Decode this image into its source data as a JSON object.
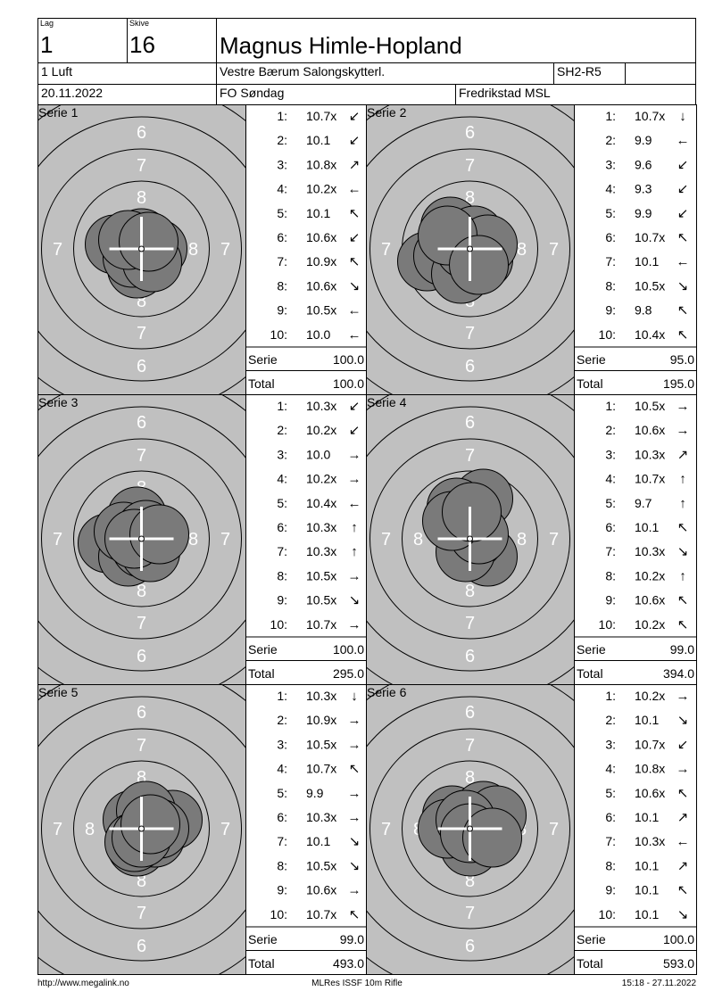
{
  "header": {
    "lag_label": "Lag",
    "lag": "1",
    "skive_label": "Skive",
    "skive": "16",
    "name": "Magnus Himle-Hopland",
    "class": "1 Luft",
    "club": "Vestre Bærum Salongskytterl.",
    "code": "SH2-R5",
    "date": "20.11.2022",
    "event": "FO Søndag",
    "venue": "Fredrikstad MSL"
  },
  "target": {
    "ring_outer": "6",
    "ring_middle": "7",
    "ring_inner": "8"
  },
  "labels": {
    "serie": "Serie",
    "total": "Total"
  },
  "series": [
    {
      "title": "Serie 1",
      "shots": [
        {
          "n": "1:",
          "score": "10.7x",
          "dir": "↙"
        },
        {
          "n": "2:",
          "score": "10.1",
          "dir": "↙"
        },
        {
          "n": "3:",
          "score": "10.8x",
          "dir": "↗"
        },
        {
          "n": "4:",
          "score": "10.2x",
          "dir": "←"
        },
        {
          "n": "5:",
          "score": "10.1",
          "dir": "↖"
        },
        {
          "n": "6:",
          "score": "10.6x",
          "dir": "↙"
        },
        {
          "n": "7:",
          "score": "10.9x",
          "dir": "↖"
        },
        {
          "n": "8:",
          "score": "10.6x",
          "dir": "↘"
        },
        {
          "n": "9:",
          "score": "10.5x",
          "dir": "←"
        },
        {
          "n": "10:",
          "score": "10.0",
          "dir": "←"
        }
      ],
      "serie": "100.0",
      "total": "100.0"
    },
    {
      "title": "Serie 2",
      "shots": [
        {
          "n": "1:",
          "score": "10.7x",
          "dir": "↓"
        },
        {
          "n": "2:",
          "score": "9.9",
          "dir": "←"
        },
        {
          "n": "3:",
          "score": "9.6",
          "dir": "↙"
        },
        {
          "n": "4:",
          "score": "9.3",
          "dir": "↙"
        },
        {
          "n": "5:",
          "score": "9.9",
          "dir": "↙"
        },
        {
          "n": "6:",
          "score": "10.7x",
          "dir": "↖"
        },
        {
          "n": "7:",
          "score": "10.1",
          "dir": "←"
        },
        {
          "n": "8:",
          "score": "10.5x",
          "dir": "↘"
        },
        {
          "n": "9:",
          "score": "9.8",
          "dir": "↖"
        },
        {
          "n": "10:",
          "score": "10.4x",
          "dir": "↖"
        }
      ],
      "serie": "95.0",
      "total": "195.0"
    },
    {
      "title": "Serie 3",
      "shots": [
        {
          "n": "1:",
          "score": "10.3x",
          "dir": "↙"
        },
        {
          "n": "2:",
          "score": "10.2x",
          "dir": "↙"
        },
        {
          "n": "3:",
          "score": "10.0",
          "dir": "→"
        },
        {
          "n": "4:",
          "score": "10.2x",
          "dir": "→"
        },
        {
          "n": "5:",
          "score": "10.4x",
          "dir": "←"
        },
        {
          "n": "6:",
          "score": "10.3x",
          "dir": "↑"
        },
        {
          "n": "7:",
          "score": "10.3x",
          "dir": "↑"
        },
        {
          "n": "8:",
          "score": "10.5x",
          "dir": "→"
        },
        {
          "n": "9:",
          "score": "10.5x",
          "dir": "↘"
        },
        {
          "n": "10:",
          "score": "10.7x",
          "dir": "→"
        }
      ],
      "serie": "100.0",
      "total": "295.0"
    },
    {
      "title": "Serie 4",
      "shots": [
        {
          "n": "1:",
          "score": "10.5x",
          "dir": "→"
        },
        {
          "n": "2:",
          "score": "10.6x",
          "dir": "→"
        },
        {
          "n": "3:",
          "score": "10.3x",
          "dir": "↗"
        },
        {
          "n": "4:",
          "score": "10.7x",
          "dir": "↑"
        },
        {
          "n": "5:",
          "score": "9.7",
          "dir": "↑"
        },
        {
          "n": "6:",
          "score": "10.1",
          "dir": "↖"
        },
        {
          "n": "7:",
          "score": "10.3x",
          "dir": "↘"
        },
        {
          "n": "8:",
          "score": "10.2x",
          "dir": "↑"
        },
        {
          "n": "9:",
          "score": "10.6x",
          "dir": "↖"
        },
        {
          "n": "10:",
          "score": "10.2x",
          "dir": "↖"
        }
      ],
      "serie": "99.0",
      "total": "394.0"
    },
    {
      "title": "Serie 5",
      "shots": [
        {
          "n": "1:",
          "score": "10.3x",
          "dir": "↓"
        },
        {
          "n": "2:",
          "score": "10.9x",
          "dir": "→"
        },
        {
          "n": "3:",
          "score": "10.5x",
          "dir": "→"
        },
        {
          "n": "4:",
          "score": "10.7x",
          "dir": "↖"
        },
        {
          "n": "5:",
          "score": "9.9",
          "dir": "→"
        },
        {
          "n": "6:",
          "score": "10.3x",
          "dir": "→"
        },
        {
          "n": "7:",
          "score": "10.1",
          "dir": "↘"
        },
        {
          "n": "8:",
          "score": "10.5x",
          "dir": "↘"
        },
        {
          "n": "9:",
          "score": "10.6x",
          "dir": "→"
        },
        {
          "n": "10:",
          "score": "10.7x",
          "dir": "↖"
        }
      ],
      "serie": "99.0",
      "total": "493.0"
    },
    {
      "title": "Serie 6",
      "shots": [
        {
          "n": "1:",
          "score": "10.2x",
          "dir": "→"
        },
        {
          "n": "2:",
          "score": "10.1",
          "dir": "↘"
        },
        {
          "n": "3:",
          "score": "10.7x",
          "dir": "↙"
        },
        {
          "n": "4:",
          "score": "10.8x",
          "dir": "→"
        },
        {
          "n": "5:",
          "score": "10.6x",
          "dir": "↖"
        },
        {
          "n": "6:",
          "score": "10.1",
          "dir": "↗"
        },
        {
          "n": "7:",
          "score": "10.3x",
          "dir": "←"
        },
        {
          "n": "8:",
          "score": "10.1",
          "dir": "↗"
        },
        {
          "n": "9:",
          "score": "10.1",
          "dir": "↖"
        },
        {
          "n": "10:",
          "score": "10.1",
          "dir": "↘"
        }
      ],
      "serie": "100.0",
      "total": "593.0"
    }
  ],
  "footer": {
    "left": "http://www.megalink.no",
    "center": "MLRes ISSF 10m Rifle",
    "right": "15:18 - 27.11.2022"
  }
}
